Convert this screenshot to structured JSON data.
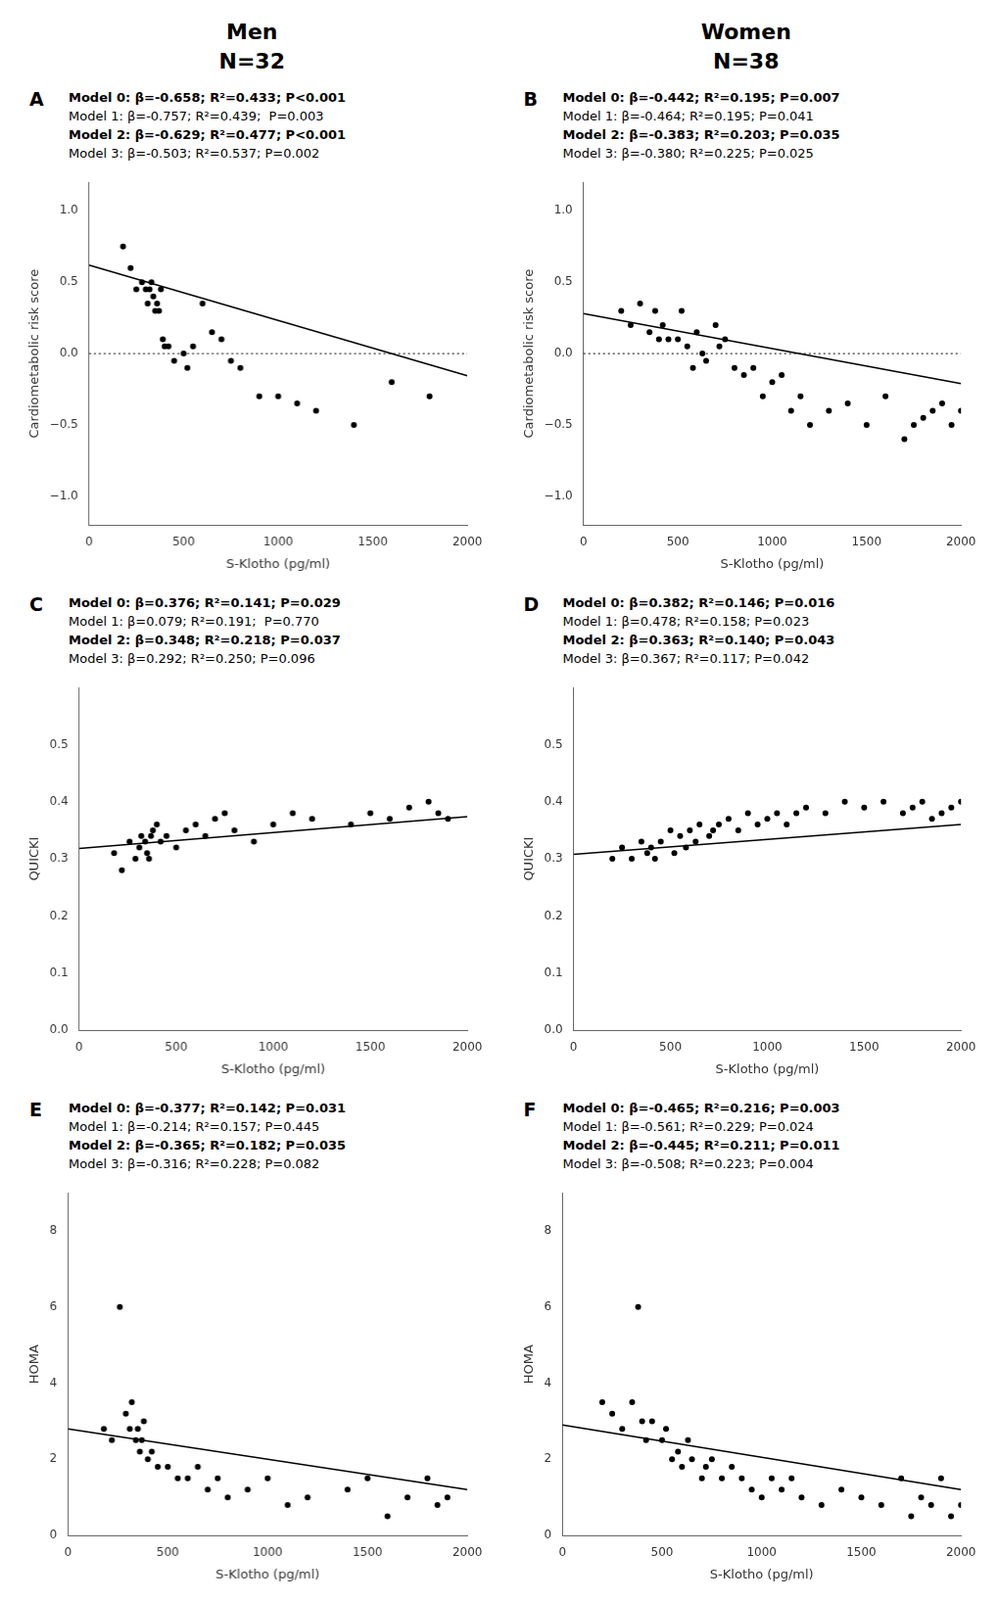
{
  "column_titles": [
    [
      "Men",
      "N=32"
    ],
    [
      "Women",
      "N=38"
    ]
  ],
  "chart_data": [
    {
      "type": "scatter",
      "title": "A",
      "annotations": [
        "Model 0: β=-0.658; R²=0.433; P<0.001",
        "Model 1: β=-0.757; R²=0.439;  P=0.003",
        "Model 2: β=-0.629; R²=0.477; P<0.001",
        "Model 3: β=-0.503; R²=0.537; P=0.002"
      ],
      "x_label": "S-Klotho (pg/ml)",
      "y_label": "Cardiometabolic risk score",
      "xlim": [
        0,
        2000
      ],
      "xticks": [
        0,
        500,
        1000,
        1500,
        2000
      ],
      "ylim": [
        -1.2,
        1.2
      ],
      "yticks": [
        {
          "value": -1.0,
          "label": "−1.0"
        },
        {
          "value": -0.5,
          "label": "−0.5"
        },
        {
          "value": 0.0,
          "label": "0.0"
        },
        0.5,
        {
          "value": 1.0,
          "label": "1.0"
        }
      ],
      "grid": false,
      "series": [
        {
          "type": "scatter",
          "color": "#000000",
          "x": [
            180,
            220,
            250,
            280,
            300,
            310,
            320,
            330,
            340,
            350,
            360,
            370,
            380,
            390,
            400,
            420,
            450,
            500,
            520,
            550,
            600,
            650,
            700,
            750,
            800,
            900,
            1000,
            1100,
            1200,
            1400,
            1600,
            1800
          ],
          "values": [
            0.75,
            0.6,
            0.45,
            0.5,
            0.45,
            0.35,
            0.45,
            0.5,
            0.4,
            0.3,
            0.35,
            0.3,
            0.45,
            0.1,
            0.05,
            0.05,
            -0.05,
            0.0,
            -0.1,
            0.05,
            0.35,
            0.15,
            0.1,
            -0.05,
            -0.1,
            -0.3,
            -0.3,
            -0.35,
            -0.4,
            -0.5,
            -0.2,
            -0.3
          ]
        },
        {
          "type": "line",
          "color": "#000000",
          "x": [
            0,
            2000
          ],
          "values": [
            0.62,
            -0.156
          ]
        },
        {
          "type": "line",
          "line_style": "dotted",
          "color": "#000000",
          "x": [
            0,
            2000
          ],
          "values": [
            0,
            0
          ]
        }
      ]
    },
    {
      "type": "scatter",
      "title": "B",
      "annotations": [
        "Model 0: β=-0.442; R²=0.195; P=0.007",
        "Model 1: β=-0.464; R²=0.195; P=0.041",
        "Model 2: β=-0.383; R²=0.203; P=0.035",
        "Model 3: β=-0.380; R²=0.225; P=0.025"
      ],
      "x_label": "S-Klotho (pg/ml)",
      "y_label": "Cardiometabolic risk score",
      "xlim": [
        0,
        2000
      ],
      "xticks": [
        0,
        500,
        1000,
        1500,
        2000
      ],
      "ylim": [
        -1.2,
        1.2
      ],
      "yticks": [
        {
          "value": -1.0,
          "label": "−1.0"
        },
        {
          "value": -0.5,
          "label": "−0.5"
        },
        {
          "value": 0.0,
          "label": "0.0"
        },
        0.5,
        {
          "value": 1.0,
          "label": "1.0"
        }
      ],
      "grid": false,
      "series": [
        {
          "type": "scatter",
          "color": "#000000",
          "x": [
            200,
            250,
            300,
            350,
            380,
            400,
            420,
            450,
            500,
            520,
            550,
            580,
            600,
            630,
            650,
            700,
            720,
            750,
            800,
            850,
            900,
            950,
            1000,
            1050,
            1100,
            1150,
            1200,
            1300,
            1400,
            1500,
            1600,
            1700,
            1750,
            1800,
            1850,
            1900,
            1950,
            2000
          ],
          "values": [
            0.3,
            0.2,
            0.35,
            0.15,
            0.3,
            0.1,
            0.2,
            0.1,
            0.1,
            0.3,
            0.05,
            -0.1,
            0.15,
            0.0,
            -0.05,
            0.2,
            0.05,
            0.1,
            -0.1,
            -0.15,
            -0.1,
            -0.3,
            -0.2,
            -0.15,
            -0.4,
            -0.3,
            -0.5,
            -0.4,
            -0.35,
            -0.5,
            -0.3,
            -0.6,
            -0.5,
            -0.45,
            -0.4,
            -0.35,
            -0.5,
            -0.4
          ]
        },
        {
          "type": "line",
          "color": "#000000",
          "x": [
            0,
            2000
          ],
          "values": [
            0.28,
            -0.21
          ]
        },
        {
          "type": "line",
          "line_style": "dotted",
          "color": "#000000",
          "x": [
            0,
            2000
          ],
          "values": [
            0,
            0
          ]
        }
      ]
    },
    {
      "type": "scatter",
      "title": "C",
      "annotations": [
        "Model 0: β=0.376; R²=0.141; P=0.029",
        "Model 1: β=0.079; R²=0.191;  P=0.770",
        "Model 2: β=0.348; R²=0.218; P=0.037",
        "Model 3: β=0.292; R²=0.250; P=0.096"
      ],
      "x_label": "S-Klotho (pg/ml)",
      "y_label": "QUICKI",
      "xlim": [
        0,
        2000
      ],
      "xticks": [
        0,
        500,
        1000,
        1500,
        2000
      ],
      "ylim": [
        0.0,
        0.6
      ],
      "yticks": [
        {
          "value": 0.0,
          "label": "0.0"
        },
        0.1,
        0.2,
        0.3,
        0.4,
        0.5
      ],
      "grid": false,
      "series": [
        {
          "type": "scatter",
          "color": "#000000",
          "x": [
            180,
            220,
            260,
            290,
            310,
            320,
            340,
            350,
            360,
            370,
            380,
            400,
            420,
            450,
            500,
            550,
            600,
            650,
            700,
            750,
            800,
            900,
            1000,
            1100,
            1200,
            1400,
            1500,
            1600,
            1700,
            1800,
            1850,
            1900
          ],
          "values": [
            0.31,
            0.28,
            0.33,
            0.3,
            0.32,
            0.34,
            0.33,
            0.31,
            0.3,
            0.34,
            0.35,
            0.36,
            0.33,
            0.34,
            0.32,
            0.35,
            0.36,
            0.34,
            0.37,
            0.38,
            0.35,
            0.33,
            0.36,
            0.38,
            0.37,
            0.36,
            0.38,
            0.37,
            0.39,
            0.4,
            0.38,
            0.37
          ]
        },
        {
          "type": "line",
          "color": "#000000",
          "x": [
            0,
            2000
          ],
          "values": [
            0.318,
            0.374
          ]
        }
      ]
    },
    {
      "type": "scatter",
      "title": "D",
      "annotations": [
        "Model 0: β=0.382; R²=0.146; P=0.016",
        "Model 1: β=0.478; R²=0.158; P=0.023",
        "Model 2: β=0.363; R²=0.140; P=0.043",
        "Model 3: β=0.367; R²=0.117; P=0.042"
      ],
      "x_label": "S-Klotho (pg/ml)",
      "y_label": "QUICKI",
      "xlim": [
        0,
        2000
      ],
      "xticks": [
        0,
        500,
        1000,
        1500,
        2000
      ],
      "ylim": [
        0.0,
        0.6
      ],
      "yticks": [
        {
          "value": 0.0,
          "label": "0.0"
        },
        0.1,
        0.2,
        0.3,
        0.4,
        0.5
      ],
      "grid": false,
      "series": [
        {
          "type": "scatter",
          "color": "#000000",
          "x": [
            200,
            250,
            300,
            350,
            380,
            400,
            420,
            450,
            500,
            520,
            550,
            580,
            600,
            630,
            650,
            700,
            720,
            750,
            800,
            850,
            900,
            950,
            1000,
            1050,
            1100,
            1150,
            1200,
            1300,
            1400,
            1500,
            1600,
            1700,
            1750,
            1800,
            1850,
            1900,
            1950,
            2000
          ],
          "values": [
            0.3,
            0.32,
            0.3,
            0.33,
            0.31,
            0.32,
            0.3,
            0.33,
            0.35,
            0.31,
            0.34,
            0.32,
            0.35,
            0.33,
            0.36,
            0.34,
            0.35,
            0.36,
            0.37,
            0.35,
            0.38,
            0.36,
            0.37,
            0.38,
            0.36,
            0.38,
            0.39,
            0.38,
            0.4,
            0.39,
            0.4,
            0.38,
            0.39,
            0.4,
            0.37,
            0.38,
            0.39,
            0.4
          ]
        },
        {
          "type": "line",
          "color": "#000000",
          "x": [
            0,
            2000
          ],
          "values": [
            0.308,
            0.36
          ]
        }
      ]
    },
    {
      "type": "scatter",
      "title": "E",
      "annotations": [
        "Model 0: β=-0.377; R²=0.142; P=0.031",
        "Model 1: β=-0.214; R²=0.157; P=0.445",
        "Model 2: β=-0.365; R²=0.182; P=0.035",
        "Model 3: β=-0.316; R²=0.228; P=0.082"
      ],
      "x_label": "S-Klotho (pg/ml)",
      "y_label": "HOMA",
      "xlim": [
        0,
        2000
      ],
      "xticks": [
        0,
        500,
        1000,
        1500,
        2000
      ],
      "ylim": [
        0.0,
        9.0
      ],
      "yticks": [
        0,
        2,
        4,
        6,
        8
      ],
      "grid": false,
      "series": [
        {
          "type": "scatter",
          "color": "#000000",
          "x": [
            180,
            220,
            260,
            290,
            310,
            320,
            340,
            350,
            360,
            370,
            380,
            400,
            420,
            450,
            500,
            550,
            600,
            650,
            700,
            750,
            800,
            900,
            1000,
            1100,
            1200,
            1400,
            1500,
            1600,
            1700,
            1800,
            1850,
            1900
          ],
          "values": [
            2.8,
            2.5,
            6.0,
            3.2,
            2.8,
            3.5,
            2.5,
            2.8,
            2.2,
            2.5,
            3.0,
            2.0,
            2.2,
            1.8,
            1.8,
            1.5,
            1.5,
            1.8,
            1.2,
            1.5,
            1.0,
            1.2,
            1.5,
            0.8,
            1.0,
            1.2,
            1.5,
            0.5,
            1.0,
            1.5,
            0.8,
            1.0
          ]
        },
        {
          "type": "line",
          "color": "#000000",
          "x": [
            0,
            2000
          ],
          "values": [
            2.8,
            1.2
          ]
        }
      ]
    },
    {
      "type": "scatter",
      "title": "F",
      "annotations": [
        "Model 0: β=-0.465; R²=0.216; P=0.003",
        "Model 1: β=-0.561; R²=0.229; P=0.024",
        "Model 2: β=-0.445; R²=0.211; P=0.011",
        "Model 3: β=-0.508; R²=0.223; P=0.004"
      ],
      "x_label": "S-Klotho (pg/ml)",
      "y_label": "HOMA",
      "xlim": [
        0,
        2000
      ],
      "xticks": [
        0,
        500,
        1000,
        1500,
        2000
      ],
      "ylim": [
        0.0,
        9.0
      ],
      "yticks": [
        0,
        2,
        4,
        6,
        8
      ],
      "grid": false,
      "series": [
        {
          "type": "scatter",
          "color": "#000000",
          "x": [
            200,
            250,
            300,
            350,
            380,
            400,
            420,
            450,
            500,
            520,
            550,
            580,
            600,
            630,
            650,
            700,
            720,
            750,
            800,
            850,
            900,
            950,
            1000,
            1050,
            1100,
            1150,
            1200,
            1300,
            1400,
            1500,
            1600,
            1700,
            1750,
            1800,
            1850,
            1900,
            1950,
            2000
          ],
          "values": [
            3.5,
            3.2,
            2.8,
            3.5,
            6.0,
            3.0,
            2.5,
            3.0,
            2.5,
            2.8,
            2.0,
            2.2,
            1.8,
            2.5,
            2.0,
            1.5,
            1.8,
            2.0,
            1.5,
            1.8,
            1.5,
            1.2,
            1.0,
            1.5,
            1.2,
            1.5,
            1.0,
            0.8,
            1.2,
            1.0,
            0.8,
            1.5,
            0.5,
            1.0,
            0.8,
            1.5,
            0.5,
            0.8
          ]
        },
        {
          "type": "line",
          "color": "#000000",
          "x": [
            0,
            2000
          ],
          "values": [
            2.9,
            1.2
          ]
        }
      ]
    }
  ]
}
